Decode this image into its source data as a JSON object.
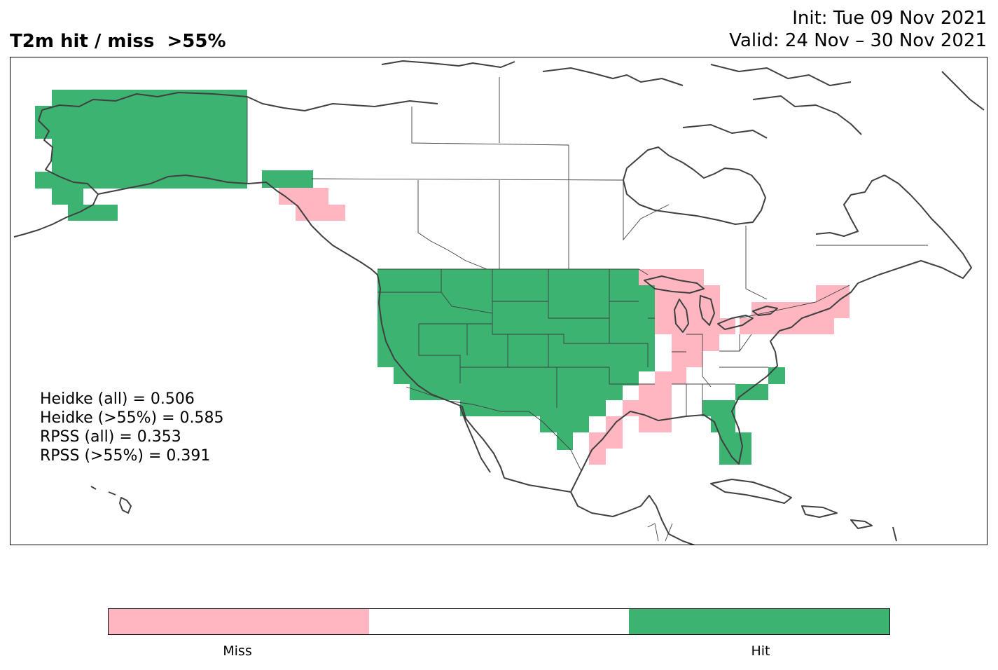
{
  "title": {
    "left": "T2m hit / miss  >55%",
    "init": "Init: Tue 09 Nov 2021",
    "valid": "Valid: 24 Nov – 30 Nov 2021"
  },
  "stats": [
    "Heidke (all) = 0.506",
    "Heidke (>55%) = 0.585",
    "RPSS (all) = 0.353",
    "RPSS (>55%) = 0.391"
  ],
  "legend": {
    "miss_label": "Miss",
    "hit_label": "Hit",
    "miss_color": "#ffb6c1",
    "neutral_color": "#ffffff",
    "hit_color": "#3cb371"
  },
  "map": {
    "region": "North America",
    "coastline_color": "#404040",
    "border_color": "#404040"
  }
}
